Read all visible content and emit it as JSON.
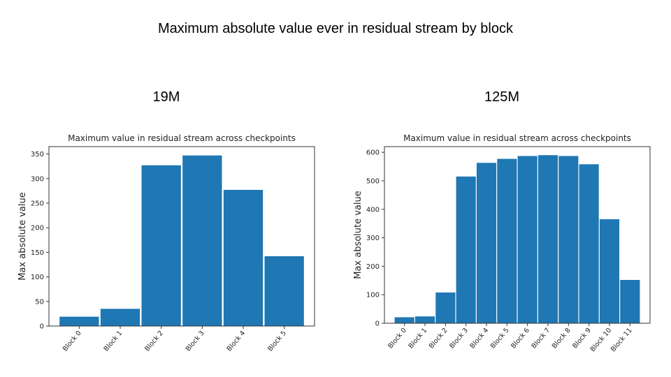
{
  "slide": {
    "title": "Maximum absolute value ever in residual stream by block"
  },
  "panels": [
    {
      "label": "19M"
    },
    {
      "label": "125M"
    }
  ],
  "chart_data": [
    {
      "type": "bar",
      "title": "Maximum value in residual stream across checkpoints",
      "xlabel": "",
      "ylabel": "Max absolute value",
      "categories": [
        "Block 0",
        "Block 1",
        "Block 2",
        "Block 3",
        "Block 4",
        "Block 5"
      ],
      "values": [
        19,
        35,
        327,
        347,
        277,
        142
      ],
      "ylim": [
        0,
        365
      ],
      "yticks": [
        0,
        50,
        100,
        150,
        200,
        250,
        300,
        350
      ],
      "color": "#1f77b4",
      "grid": false,
      "legend": false
    },
    {
      "type": "bar",
      "title": "Maximum value in residual stream across checkpoints",
      "xlabel": "",
      "ylabel": "Max absolute value",
      "categories": [
        "Block 0",
        "Block 1",
        "Block 2",
        "Block 3",
        "Block 4",
        "Block 5",
        "Block 6",
        "Block 7",
        "Block 8",
        "Block 9",
        "Block 10",
        "Block 11"
      ],
      "values": [
        21,
        24,
        108,
        515,
        563,
        577,
        587,
        590,
        587,
        558,
        365,
        152
      ],
      "ylim": [
        0,
        620
      ],
      "yticks": [
        0,
        100,
        200,
        300,
        400,
        500,
        600
      ],
      "color": "#1f77b4",
      "grid": false,
      "legend": false
    }
  ]
}
